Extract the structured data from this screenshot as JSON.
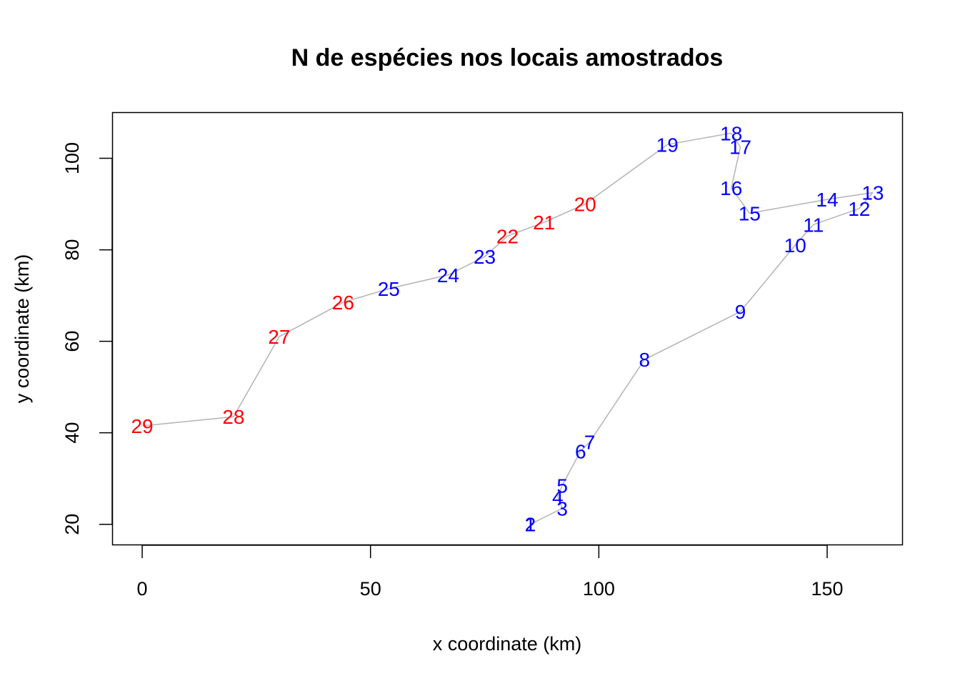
{
  "chart_data": {
    "type": "scatter",
    "title": "N de espécies nos locais amostrados",
    "xlabel": "x coordinate (km)",
    "ylabel": "y coordinate (km)",
    "xlim": [
      -6.5,
      166.5
    ],
    "ylim": [
      15.5,
      110
    ],
    "xticks": [
      0,
      50,
      100,
      150
    ],
    "yticks": [
      20,
      40,
      60,
      80,
      100
    ],
    "grid": false,
    "line_color": "#b3b3b3",
    "colors": {
      "blue": "#0000ff",
      "red": "#ff0000"
    },
    "points": [
      {
        "label": "1",
        "x": 85,
        "y": 20,
        "color": "blue"
      },
      {
        "label": "2",
        "x": 85,
        "y": 20,
        "color": "blue"
      },
      {
        "label": "3",
        "x": 92,
        "y": 23.5,
        "color": "blue"
      },
      {
        "label": "4",
        "x": 91,
        "y": 26,
        "color": "blue"
      },
      {
        "label": "5",
        "x": 92,
        "y": 28.5,
        "color": "blue"
      },
      {
        "label": "6",
        "x": 96,
        "y": 36,
        "color": "blue"
      },
      {
        "label": "7",
        "x": 98,
        "y": 38,
        "color": "blue"
      },
      {
        "label": "8",
        "x": 110,
        "y": 56,
        "color": "blue"
      },
      {
        "label": "9",
        "x": 131,
        "y": 66.5,
        "color": "blue"
      },
      {
        "label": "10",
        "x": 143,
        "y": 81,
        "color": "blue"
      },
      {
        "label": "11",
        "x": 147,
        "y": 85.5,
        "color": "blue"
      },
      {
        "label": "12",
        "x": 157,
        "y": 89,
        "color": "blue"
      },
      {
        "label": "13",
        "x": 160,
        "y": 92.5,
        "color": "blue"
      },
      {
        "label": "14",
        "x": 150,
        "y": 91,
        "color": "blue"
      },
      {
        "label": "15",
        "x": 133,
        "y": 88,
        "color": "blue"
      },
      {
        "label": "16",
        "x": 129,
        "y": 93.5,
        "color": "blue"
      },
      {
        "label": "17",
        "x": 131,
        "y": 102.5,
        "color": "blue"
      },
      {
        "label": "18",
        "x": 129,
        "y": 105.5,
        "color": "blue"
      },
      {
        "label": "19",
        "x": 115,
        "y": 103,
        "color": "blue"
      },
      {
        "label": "20",
        "x": 97,
        "y": 90,
        "color": "red"
      },
      {
        "label": "21",
        "x": 88,
        "y": 86,
        "color": "red"
      },
      {
        "label": "22",
        "x": 80,
        "y": 83,
        "color": "red"
      },
      {
        "label": "23",
        "x": 75,
        "y": 78.5,
        "color": "blue"
      },
      {
        "label": "24",
        "x": 67,
        "y": 74.5,
        "color": "blue"
      },
      {
        "label": "25",
        "x": 54,
        "y": 71.5,
        "color": "blue"
      },
      {
        "label": "26",
        "x": 44,
        "y": 68.5,
        "color": "red"
      },
      {
        "label": "27",
        "x": 30,
        "y": 61,
        "color": "red"
      },
      {
        "label": "28",
        "x": 20,
        "y": 43.5,
        "color": "red"
      },
      {
        "label": "29",
        "x": 0,
        "y": 41.5,
        "color": "red"
      }
    ]
  }
}
